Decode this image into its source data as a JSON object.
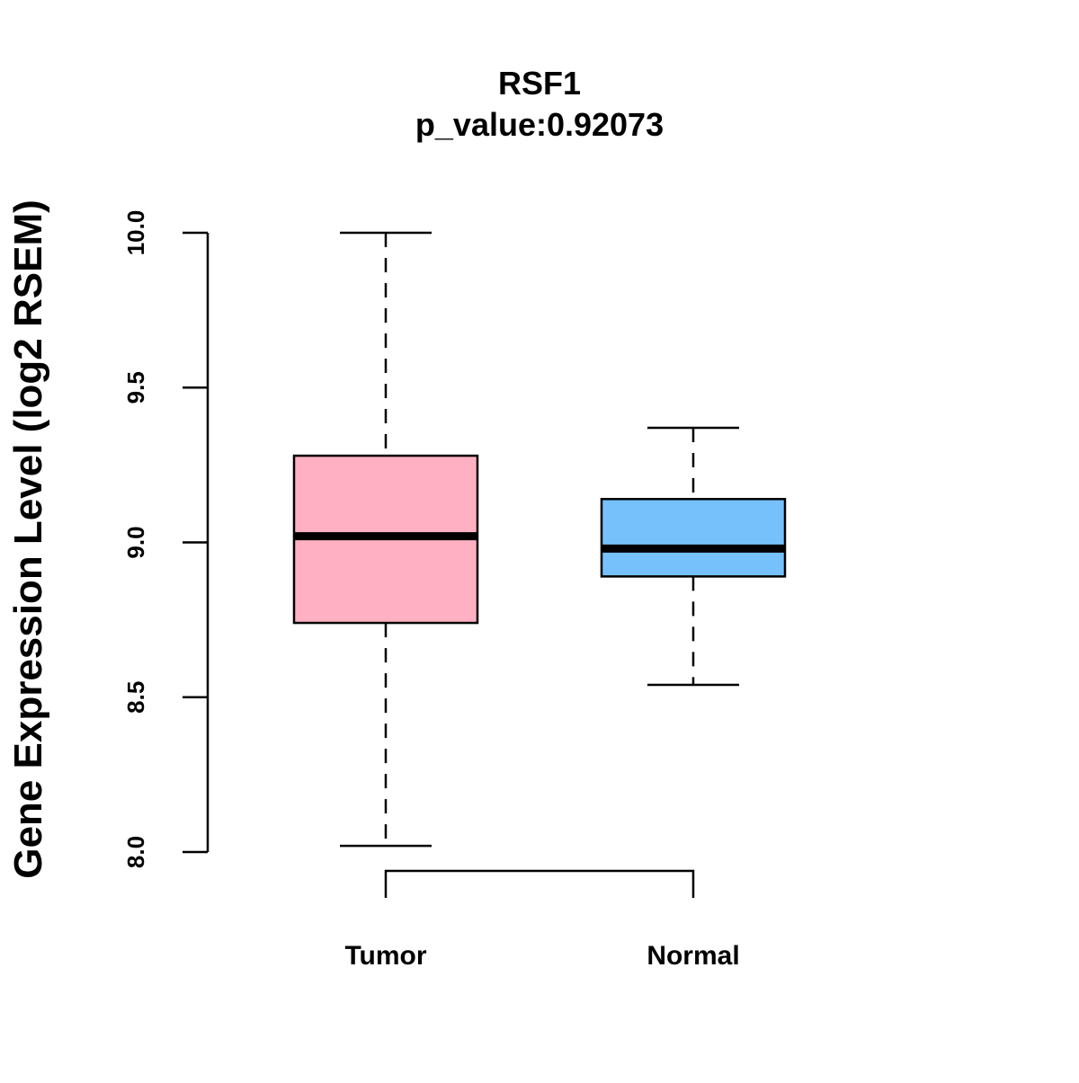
{
  "chart_data": {
    "type": "boxplot",
    "title": "RSF1",
    "subtitle": "p_value:0.92073",
    "xlabel": "",
    "ylabel": "Gene Expression Level (log2 RSEM)",
    "ylim": [
      8.0,
      10.0
    ],
    "yticks": [
      8.0,
      8.5,
      9.0,
      9.5,
      10.0
    ],
    "ytick_labels": [
      "8.0",
      "8.5",
      "9.0",
      "9.5",
      "10.0"
    ],
    "grid": false,
    "categories": [
      "Tumor",
      "Normal"
    ],
    "boxes": [
      {
        "name": "Tumor",
        "whisker_low": 8.02,
        "q1": 8.74,
        "median": 9.02,
        "q3": 9.28,
        "whisker_high": 10.0,
        "color": "#FFB0C3"
      },
      {
        "name": "Normal",
        "whisker_low": 8.54,
        "q1": 8.89,
        "median": 8.98,
        "q3": 9.14,
        "whisker_high": 9.37,
        "color": "#76C1FC"
      }
    ],
    "comparison_bracket": {
      "from": "Tumor",
      "to": "Normal"
    }
  }
}
